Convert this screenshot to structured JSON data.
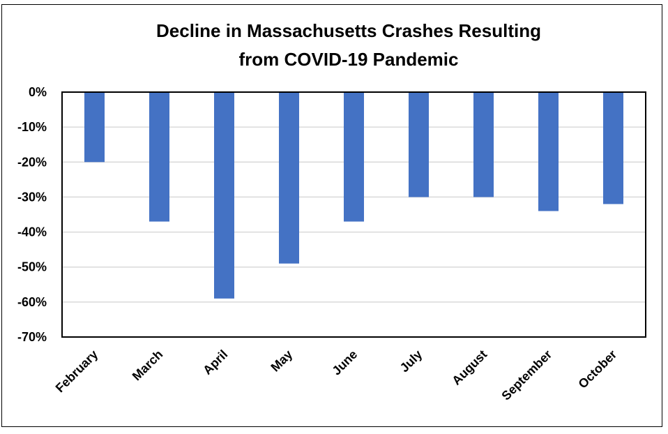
{
  "chart_data": {
    "type": "bar",
    "title_lines": [
      "Decline in Massachusetts Crashes Resulting",
      "from COVID-19 Pandemic"
    ],
    "categories": [
      "February",
      "March",
      "April",
      "May",
      "June",
      "July",
      "August",
      "September",
      "October"
    ],
    "values": [
      -20,
      -37,
      -59,
      -49,
      -37,
      -30,
      -30,
      -34,
      -32
    ],
    "ylim": [
      -70,
      0
    ],
    "yticks": [
      0,
      -10,
      -20,
      -30,
      -40,
      -50,
      -60,
      -70
    ],
    "ytick_labels": [
      "0%",
      "-10%",
      "-20%",
      "-30%",
      "-40%",
      "-50%",
      "-60%",
      "-70%"
    ],
    "grid": true,
    "bar_color": "#4472C4",
    "grid_color": "#D9D9D9"
  }
}
